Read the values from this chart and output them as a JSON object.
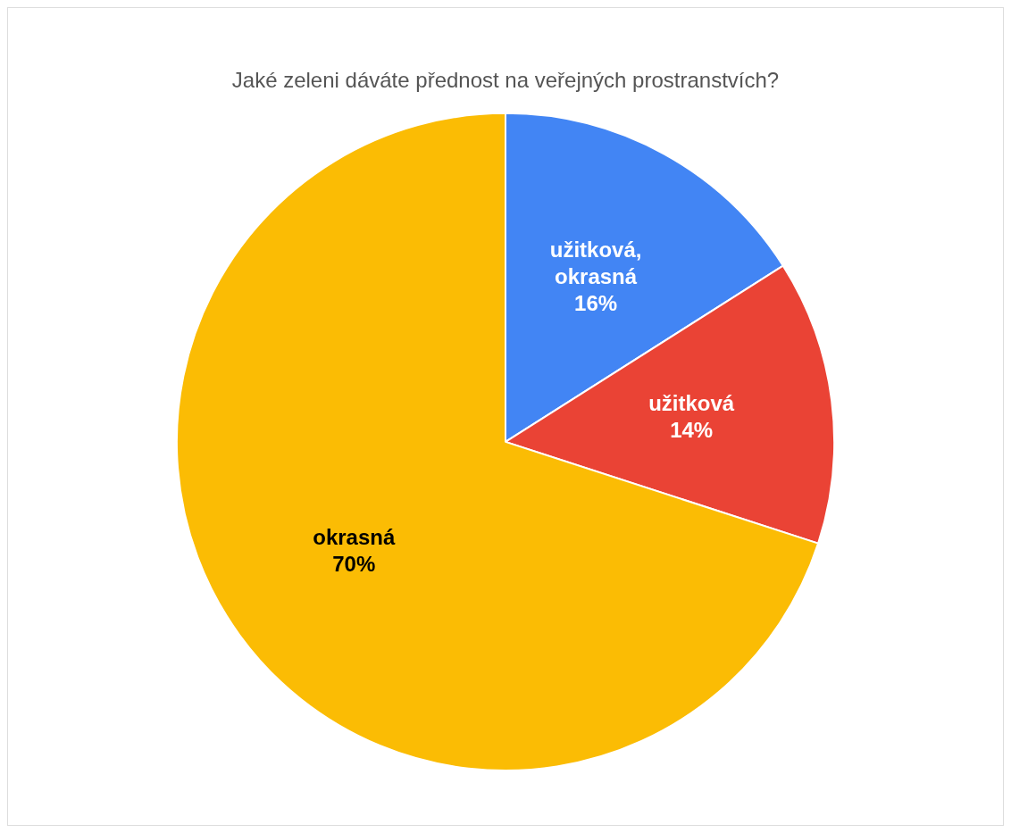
{
  "chart_data": {
    "type": "pie",
    "title": "Jaké zeleni dáváte přednost na veřejných prostranstvích?",
    "categories": [
      "užitková, okrasná",
      "užitková",
      "okrasná"
    ],
    "values": [
      16,
      14,
      70
    ],
    "colors": [
      "#4285f4",
      "#ea4335",
      "#fbbc04"
    ],
    "value_labels": [
      "16%",
      "14%",
      "70%"
    ],
    "legend": false
  }
}
